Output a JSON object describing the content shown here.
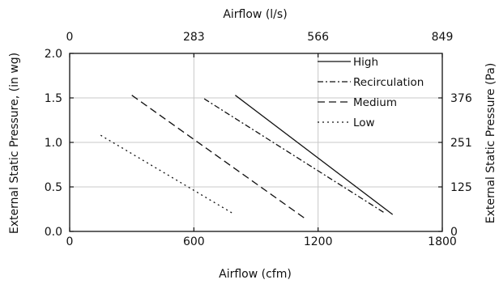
{
  "chart_data": {
    "type": "line",
    "xlabel": "Airflow (cfm)",
    "ylabel": "External Static Pressure, (in wg)",
    "x2label": "Airflow (l/s)",
    "y2label": "External Static Pressure (Pa)",
    "xlim": [
      0,
      1800
    ],
    "ylim": [
      0.0,
      2.0
    ],
    "xticks": [
      0,
      600,
      1200,
      1800
    ],
    "xtick_labels": [
      "0",
      "600",
      "1200",
      "1800"
    ],
    "yticks": [
      0.0,
      0.5,
      1.0,
      1.5,
      2.0
    ],
    "ytick_labels": [
      "0.0",
      "0.5",
      "1.0",
      "1.5",
      "2.0"
    ],
    "x2ticks": [
      0,
      600,
      1200,
      1800
    ],
    "x2tick_labels": [
      "0",
      "283",
      "566",
      "849"
    ],
    "y2ticks": [
      0.0,
      0.5,
      1.0,
      1.5
    ],
    "y2tick_labels": [
      "0",
      "125",
      "251",
      "376"
    ],
    "grid": true,
    "legend": "top-right",
    "series": [
      {
        "name": "High",
        "style": "solid",
        "x": [
          800,
          1560
        ],
        "y": [
          1.53,
          0.19
        ]
      },
      {
        "name": "Recirculation",
        "style": "dashdot",
        "x": [
          650,
          1520
        ],
        "y": [
          1.49,
          0.21
        ]
      },
      {
        "name": "Medium",
        "style": "dashed",
        "x": [
          300,
          1140
        ],
        "y": [
          1.53,
          0.14
        ]
      },
      {
        "name": "Low",
        "style": "dotted",
        "x": [
          150,
          790
        ],
        "y": [
          1.08,
          0.2
        ]
      }
    ]
  }
}
